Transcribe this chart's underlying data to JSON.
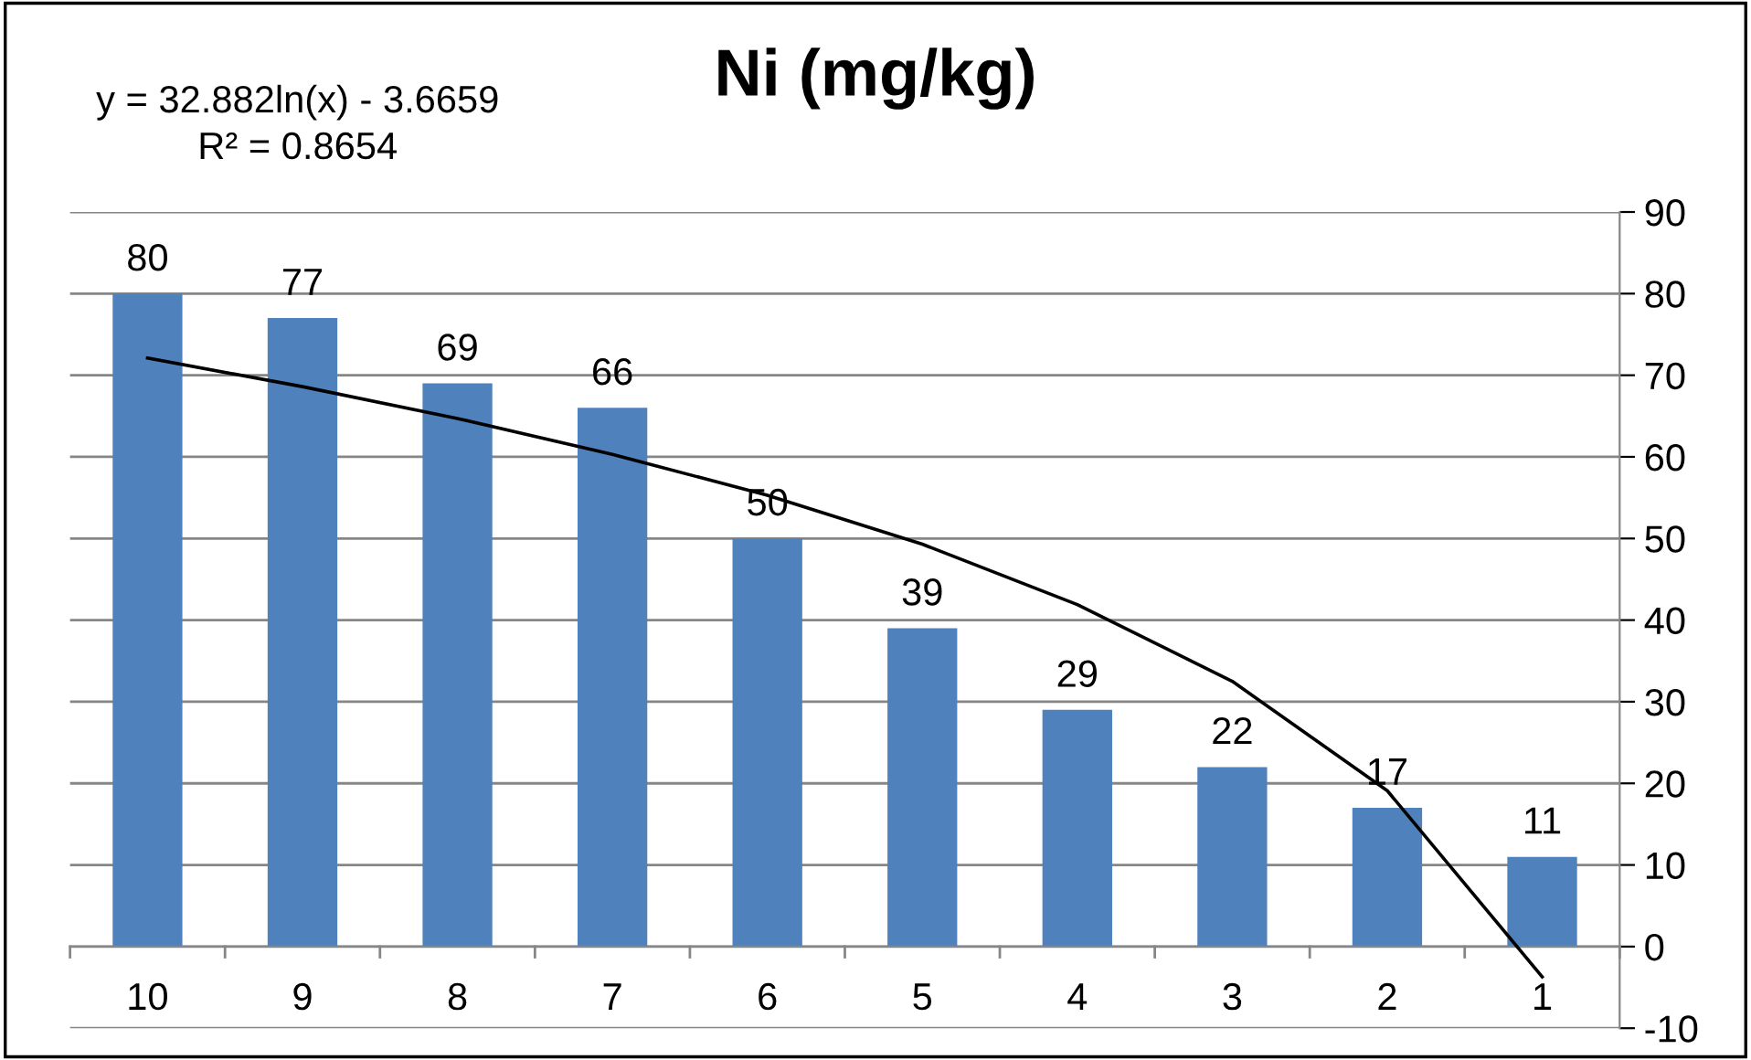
{
  "chart_data": {
    "type": "bar",
    "title": "Ni (mg/kg)",
    "categories": [
      "10",
      "9",
      "8",
      "7",
      "6",
      "5",
      "4",
      "3",
      "2",
      "1"
    ],
    "series": [
      {
        "color": "#4f81bd",
        "values": [
          80,
          77,
          69,
          66,
          50,
          39,
          29,
          22,
          17,
          11
        ],
        "value_labels": [
          "80",
          "77",
          "69",
          "66",
          "50",
          "39",
          "29",
          "22",
          "17",
          "11"
        ]
      },
      {
        "type": "line",
        "color": "#000000",
        "values": [
          72.1,
          68.6,
          64.7,
          60.3,
          55.3,
          49.3,
          41.9,
          32.5,
          19.1,
          -3.7
        ]
      }
    ],
    "ylim": [
      -10,
      90
    ],
    "yticks": [
      -10,
      0,
      10,
      20,
      30,
      40,
      50,
      60,
      70,
      80,
      90
    ],
    "grid": "y",
    "legend": false,
    "marker": "none",
    "line_style": "solid",
    "annotations": [
      "y = 32.882ln(x) - 3.6659\nR² = 0.8654"
    ]
  }
}
